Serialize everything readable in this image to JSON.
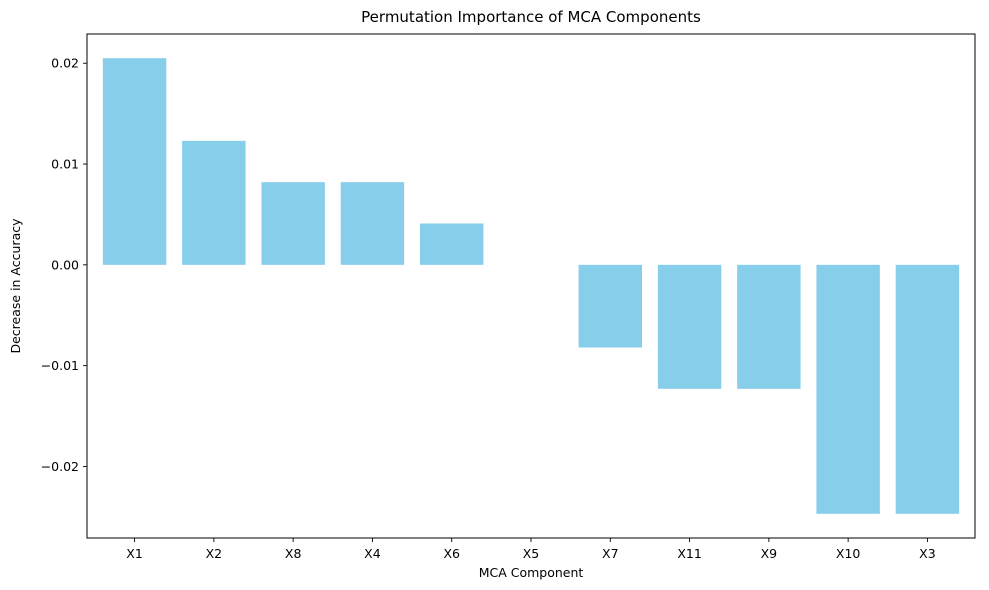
{
  "chart_data": {
    "type": "bar",
    "title": "Permutation Importance of MCA Components",
    "xlabel": "MCA Component",
    "ylabel": "Decrease in Accuracy",
    "categories": [
      "X1",
      "X2",
      "X8",
      "X4",
      "X6",
      "X5",
      "X7",
      "X11",
      "X9",
      "X10",
      "X3"
    ],
    "values": [
      0.0205,
      0.0123,
      0.0082,
      0.0082,
      0.0041,
      0.0,
      -0.0082,
      -0.0123,
      -0.0123,
      -0.0247,
      -0.0247
    ],
    "ylim": [
      -0.0271,
      0.0229
    ],
    "yticks": [
      -0.02,
      -0.01,
      0.0,
      0.01,
      0.02
    ],
    "ytick_labels": [
      "−0.02",
      "−0.01",
      "0.00",
      "0.01",
      "0.02"
    ],
    "grid": false,
    "legend": null,
    "bar_color": "#87ceeb"
  }
}
